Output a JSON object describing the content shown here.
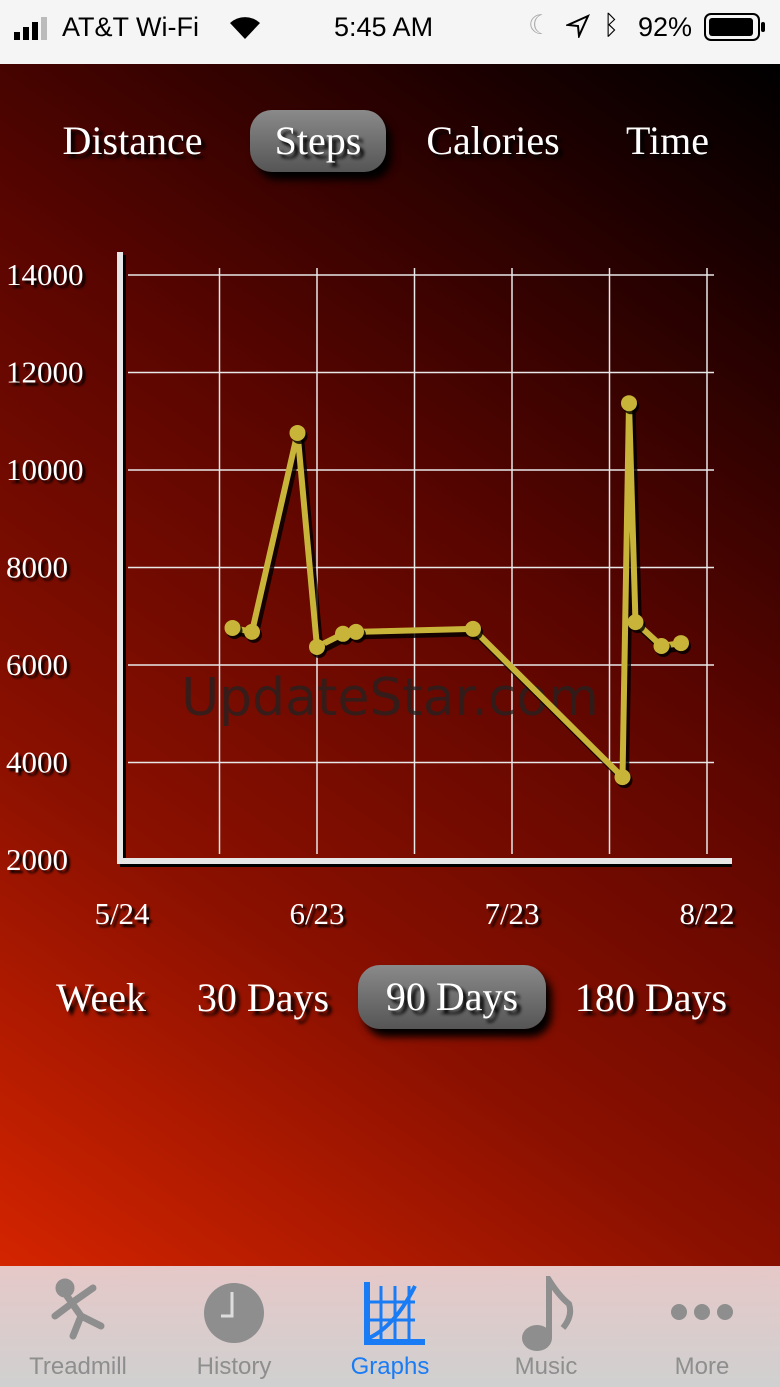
{
  "status_bar": {
    "carrier": "AT&T Wi-Fi",
    "time": "5:45 AM",
    "battery": "92%"
  },
  "metric_tabs": [
    {
      "label": "Distance",
      "selected": false
    },
    {
      "label": "Steps",
      "selected": true
    },
    {
      "label": "Calories",
      "selected": false
    },
    {
      "label": "Time",
      "selected": false
    }
  ],
  "range_tabs": [
    {
      "label": "Week",
      "selected": false
    },
    {
      "label": "30 Days",
      "selected": false
    },
    {
      "label": "90 Days",
      "selected": true
    },
    {
      "label": "180 Days",
      "selected": false
    }
  ],
  "watermark": "UpdateStar.com",
  "chart_data": {
    "type": "line",
    "ylim": [
      2000,
      14000
    ],
    "yticks": [
      "14000",
      "12000",
      "10000",
      "8000",
      "6000",
      "4000",
      "2000"
    ],
    "xticks": [
      "5/24",
      "6/23",
      "7/23",
      "8/22"
    ],
    "grid": true,
    "line_color": "#c9b43a",
    "points": [
      {
        "x": "6/10",
        "y": 6760
      },
      {
        "x": "6/13",
        "y": 6680
      },
      {
        "x": "6/20",
        "y": 10760
      },
      {
        "x": "6/23",
        "y": 6370
      },
      {
        "x": "6/27",
        "y": 6640
      },
      {
        "x": "6/29",
        "y": 6680
      },
      {
        "x": "7/17",
        "y": 6740
      },
      {
        "x": "8/9",
        "y": 3700
      },
      {
        "x": "8/10",
        "y": 11370
      },
      {
        "x": "8/11",
        "y": 6880
      },
      {
        "x": "8/15",
        "y": 6390
      },
      {
        "x": "8/18",
        "y": 6450
      }
    ]
  },
  "tab_bar": [
    {
      "label": "Treadmill",
      "icon": "runner-icon",
      "active": false
    },
    {
      "label": "History",
      "icon": "clock-icon",
      "active": false
    },
    {
      "label": "Graphs",
      "icon": "graph-icon",
      "active": true
    },
    {
      "label": "Music",
      "icon": "music-note-icon",
      "active": false
    },
    {
      "label": "More",
      "icon": "more-icon",
      "active": false
    }
  ],
  "colors": {
    "accent": "#1a7cf5",
    "inactive": "#8e8e8e"
  }
}
